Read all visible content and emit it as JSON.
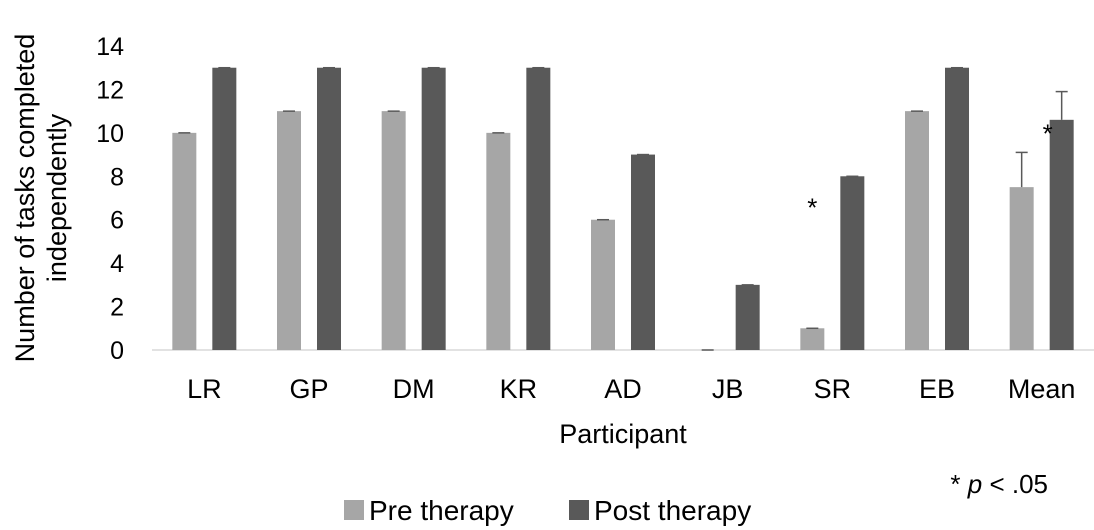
{
  "chart_data": {
    "type": "bar",
    "title": "",
    "xlabel": "Participant",
    "ylabel_lines": [
      "Number of tasks completed",
      "independently"
    ],
    "ylim": [
      0,
      14
    ],
    "yticks": [
      0,
      2,
      4,
      6,
      8,
      10,
      12,
      14
    ],
    "categories": [
      "LR",
      "GP",
      "DM",
      "KR",
      "AD",
      "JB",
      "SR",
      "EB",
      "Mean"
    ],
    "series": [
      {
        "name": "Pre therapy",
        "color": "#a6a6a6",
        "values": [
          10,
          11,
          11,
          10,
          6,
          0,
          1,
          11,
          7.5
        ],
        "error": [
          0,
          0,
          0,
          0,
          0,
          0,
          0,
          0,
          1.6
        ]
      },
      {
        "name": "Post therapy",
        "color": "#595959",
        "values": [
          13,
          13,
          13,
          13,
          9,
          3,
          8,
          13,
          10.6
        ],
        "error": [
          0,
          0,
          0,
          0,
          0,
          0,
          0,
          0,
          1.3
        ]
      }
    ],
    "significance_marks": [
      {
        "category": "SR",
        "symbol": "*"
      },
      {
        "category": "Mean",
        "symbol": "*"
      }
    ],
    "footnote": {
      "prefix": "* ",
      "italic": "p",
      "suffix": " < .05"
    },
    "legend": {
      "position": "bottom"
    },
    "grid": false
  }
}
